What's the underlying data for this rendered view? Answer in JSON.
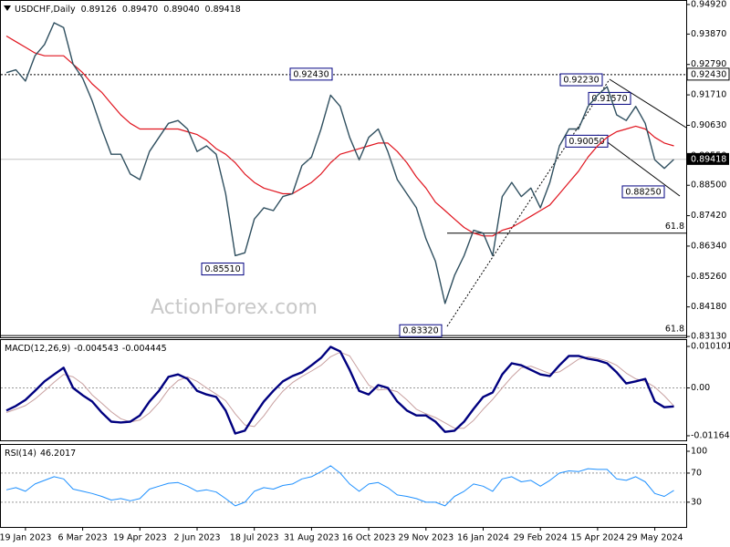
{
  "chart_data": [
    {
      "type": "line",
      "title": "USDCHF,Daily",
      "ohlc": [
        0.89126,
        {
          "value": 0.8947,
          "label": "0.89470"
        },
        {
          "value": 0.8904,
          "label": "0.89040"
        },
        0.89418
      ],
      "watermark": "ActionForex.com",
      "ylim": [
        0.831,
        0.9508
      ],
      "yticks": [
        {
          "value": 0.9492,
          "label": "0.94920"
        },
        {
          "value": 0.9387,
          "label": "0.93870"
        },
        {
          "value": 0.9279,
          "label": "0.92790"
        },
        {
          "value": 0.9171,
          "label": "0.91710"
        },
        {
          "value": 0.9063,
          "label": "0.90630"
        },
        {
          "value": 0.8955,
          "label": "0.89550"
        },
        {
          "value": 0.885,
          "label": "0.88500"
        },
        {
          "value": 0.8742,
          "label": "0.87420"
        },
        {
          "value": 0.8634,
          "label": "0.86340"
        },
        {
          "value": 0.8526,
          "label": "0.85260"
        },
        {
          "value": 0.8418,
          "label": "0.84180"
        },
        {
          "value": 0.8313,
          "label": "0.83130"
        }
      ],
      "series": [
        {
          "name": "USDCHF",
          "color": "#2f4f5f",
          "width": 1.4,
          "values": [
            0.925,
            0.926,
            0.922,
            0.931,
            0.935,
            0.9427,
            0.941,
            0.928,
            0.923,
            0.915,
            0.905,
            0.896,
            0.896,
            0.889,
            0.887,
            0.897,
            0.902,
            0.907,
            0.908,
            0.905,
            0.897,
            0.899,
            0.896,
            0.882,
            0.86,
            0.861,
            0.873,
            0.877,
            0.876,
            0.881,
            0.882,
            0.892,
            0.895,
            0.905,
            0.917,
            0.913,
            0.902,
            0.894,
            0.902,
            0.905,
            0.897,
            0.887,
            0.882,
            0.877,
            0.866,
            0.858,
            0.843,
            0.853,
            0.86,
            0.869,
            0.868,
            0.86,
            0.881,
            0.886,
            0.881,
            0.884,
            0.877,
            0.886,
            0.899,
            0.905,
            0.905,
            0.913,
            0.917,
            0.92,
            0.91,
            0.908,
            0.913,
            0.907,
            0.894,
            0.891,
            0.8942
          ]
        },
        {
          "name": "MA",
          "color": "#e0141e",
          "width": 1.2,
          "values": [
            0.938,
            0.936,
            0.934,
            0.932,
            0.931,
            0.931,
            0.931,
            0.928,
            0.925,
            0.921,
            0.918,
            0.914,
            0.91,
            0.907,
            0.905,
            0.905,
            0.905,
            0.905,
            0.905,
            0.904,
            0.903,
            0.901,
            0.898,
            0.896,
            0.893,
            0.889,
            0.886,
            0.884,
            0.883,
            0.882,
            0.882,
            0.884,
            0.886,
            0.889,
            0.893,
            0.896,
            0.897,
            0.898,
            0.899,
            0.9,
            0.9,
            0.897,
            0.893,
            0.888,
            0.884,
            0.879,
            0.876,
            0.873,
            0.87,
            0.868,
            0.867,
            0.867,
            0.869,
            0.87,
            0.872,
            0.874,
            0.876,
            0.878,
            0.882,
            0.886,
            0.89,
            0.895,
            0.899,
            0.902,
            0.904,
            0.905,
            0.906,
            0.905,
            0.902,
            0.9,
            0.899
          ]
        }
      ],
      "annotations": [
        {
          "value": 0.9243,
          "label": "0.92430"
        },
        {
          "value": 0.8551,
          "label": "0.85510"
        },
        {
          "value": 0.8332,
          "label": "0.83320"
        },
        {
          "value": 0.9223,
          "label": "0.92230"
        },
        {
          "value": 0.9157,
          "label": "0.91570"
        },
        {
          "value": 0.9005,
          "label": "0.90050"
        },
        {
          "value": 0.8825,
          "label": "0.88250"
        }
      ],
      "fib_levels": [
        {
          "name": "61.8",
          "price": 0.868
        },
        {
          "name": "61.8",
          "price": 0.8316
        }
      ]
    },
    {
      "type": "line",
      "title": "MACD(12,26,9)",
      "header_values": [
        -0.004543,
        -0.004445
      ],
      "ylim": [
        -0.01276,
        0.01188
      ],
      "yticks": [
        0.010101,
        {
          "value": 0,
          "label": "0.00"
        },
        -0.011645
      ],
      "levels": [
        0
      ],
      "series": [
        {
          "name": "MACD",
          "color": "#00007f",
          "width": 2.4,
          "values": [
            -0.0055,
            -0.0044,
            -0.0029,
            -0.0007,
            0.0016,
            0.0033,
            0.0049,
            0.0,
            -0.0018,
            -0.0033,
            -0.006,
            -0.0082,
            -0.0084,
            -0.0082,
            -0.0067,
            -0.0033,
            -0.0007,
            0.0027,
            0.0033,
            0.0022,
            -0.0007,
            -0.0016,
            -0.0022,
            -0.0055,
            -0.0111,
            -0.0104,
            -0.0067,
            -0.0033,
            -0.0007,
            0.0016,
            0.0029,
            0.0038,
            0.0055,
            0.0073,
            0.01,
            0.0089,
            0.0044,
            -0.0007,
            -0.0016,
            0.0007,
            0.0,
            -0.0033,
            -0.0055,
            -0.0067,
            -0.0067,
            -0.0082,
            -0.0107,
            -0.0104,
            -0.0082,
            -0.0051,
            -0.0022,
            -0.0011,
            0.0033,
            0.006,
            0.0055,
            0.0044,
            0.0033,
            0.0029,
            0.0055,
            0.0078,
            0.0078,
            0.0071,
            0.0067,
            0.006,
            0.0038,
            0.0011,
            0.0016,
            0.0022,
            -0.0033,
            -0.0047,
            -0.0045
          ]
        },
        {
          "name": "Signal",
          "color": "#c8a0a0",
          "width": 1,
          "values": [
            -0.006,
            -0.0052,
            -0.0043,
            -0.0027,
            -0.0007,
            0.0014,
            0.0033,
            0.0027,
            0.001,
            -0.0017,
            -0.0037,
            -0.0058,
            -0.0075,
            -0.0083,
            -0.0078,
            -0.0061,
            -0.0036,
            -0.0004,
            0.0018,
            0.0027,
            0.0016,
            0.0,
            -0.0015,
            -0.0031,
            -0.0063,
            -0.009,
            -0.0094,
            -0.0068,
            -0.0036,
            -0.0008,
            0.0013,
            0.0028,
            0.0041,
            0.0055,
            0.0076,
            0.0087,
            0.0078,
            0.0042,
            0.0007,
            -0.0005,
            -0.0003,
            -0.0009,
            -0.0029,
            -0.0052,
            -0.0063,
            -0.0072,
            -0.0085,
            -0.0098,
            -0.0098,
            -0.0079,
            -0.0052,
            -0.0028,
            0.0,
            0.0027,
            0.0049,
            0.0053,
            0.0044,
            0.0035,
            0.0039,
            0.0054,
            0.007,
            0.0076,
            0.0072,
            0.0066,
            0.0055,
            0.0036,
            0.0022,
            0.0016,
            0.0002,
            -0.0019,
            -0.0044
          ]
        }
      ]
    },
    {
      "type": "line",
      "title": "RSI(14)",
      "header_values": [
        46.2017
      ],
      "ylim": [
        -4,
        110
      ],
      "yticks": [
        100,
        70,
        30
      ],
      "levels": [
        70,
        30
      ],
      "categories": [
        null,
        null,
        "19 Jan 2023",
        null,
        null,
        null,
        null,
        null,
        "6 Mar 2023",
        null,
        null,
        null,
        null,
        null,
        "19 Apr 2023",
        null,
        null,
        null,
        null,
        null,
        "2 Jun 2023",
        null,
        null,
        null,
        null,
        null,
        "18 Jul 2023",
        null,
        null,
        null,
        null,
        null,
        "31 Aug 2023",
        null,
        null,
        null,
        null,
        null,
        "16 Oct 2023",
        null,
        null,
        null,
        null,
        null,
        "29 Nov 2023",
        null,
        null,
        null,
        null,
        null,
        "16 Jan 2024",
        null,
        null,
        null,
        null,
        null,
        "29 Feb 2024",
        null,
        null,
        null,
        null,
        null,
        "15 Apr 2024",
        null,
        null,
        null,
        null,
        null,
        "29 May 2024",
        null,
        null
      ],
      "series": [
        {
          "name": "RSI",
          "color": "#1e90ff",
          "width": 1,
          "values": [
            47,
            50,
            45,
            55,
            60,
            65,
            62,
            48,
            45,
            42,
            38,
            33,
            35,
            32,
            35,
            48,
            52,
            56,
            57,
            52,
            45,
            47,
            44,
            35,
            25,
            30,
            45,
            50,
            48,
            53,
            55,
            62,
            65,
            72,
            80,
            70,
            55,
            45,
            55,
            57,
            50,
            40,
            38,
            35,
            30,
            30,
            25,
            38,
            45,
            55,
            52,
            45,
            62,
            65,
            58,
            60,
            52,
            60,
            70,
            73,
            72,
            76,
            75,
            75,
            62,
            60,
            65,
            58,
            42,
            38,
            46.2017
          ]
        }
      ]
    }
  ]
}
